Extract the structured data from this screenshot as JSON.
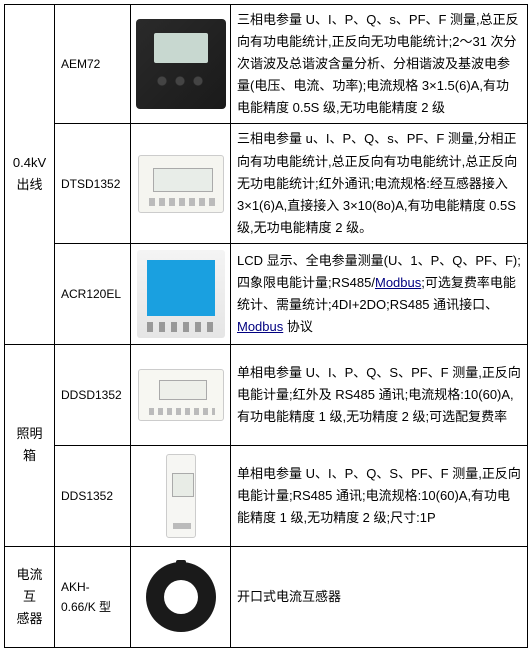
{
  "categories": {
    "outgoing04kv": "0.4kV\n出线",
    "lightingBox": "照明箱",
    "currentTransformer": "电流互\n感器"
  },
  "rows": [
    {
      "model": "AEM72",
      "desc": "三相电参量 U、I、P、Q、s、PF、F 测量,总正反向有功电能统计,正反向无功电能统计;2～31 次分次谐波及总谐波含量分析、分相谐波及基波电参量(电压、电流、功率);电流规格 3×1.5(6)A,有功电能精度 0.5S 级,无功电能精度 2 级"
    },
    {
      "model": "DTSD1352",
      "desc": "三相电参量 u、I、P、Q、s、PF、F 测量,分相正向有功电能统计,总正反向有功电能统计,总正反向无功电能统计;红外通讯;电流规格:经互感器接入 3×1(6)A,直接接入 3×10(8o)A,有功电能精度 0.5S 级,无功电能精度 2 级。"
    },
    {
      "model": "ACR120EL",
      "desc_pre": "LCD 显示、全电参量测量(U、1、P、Q、PF、F);四象限电能计量;RS485/",
      "desc_link1": "Modbus",
      "desc_mid": ";可选复费率电能统计、需量统计;4DI+2DO;RS485 通讯接口、",
      "desc_link2": "Modbus",
      "desc_post": " 协议"
    },
    {
      "model": "DDSD1352",
      "desc": "单相电参量 U、I、P、Q、S、PF、F 测量,正反向电能计量;红外及 RS485 通讯;电流规格:10(60)A,有功电能精度 1 级,无功精度 2 级;可选配复费率"
    },
    {
      "model": "DDS1352",
      "desc": "单相电参量 U、I、P、Q、S、PF、F 测量,正反向电能计量;RS485 通讯;电流规格:10(60)A,有功电能精度 1 级,无功精度 2 级;尺寸:1P"
    },
    {
      "model": "AKH-0.66/K 型",
      "desc": "开口式电流互感器"
    }
  ]
}
